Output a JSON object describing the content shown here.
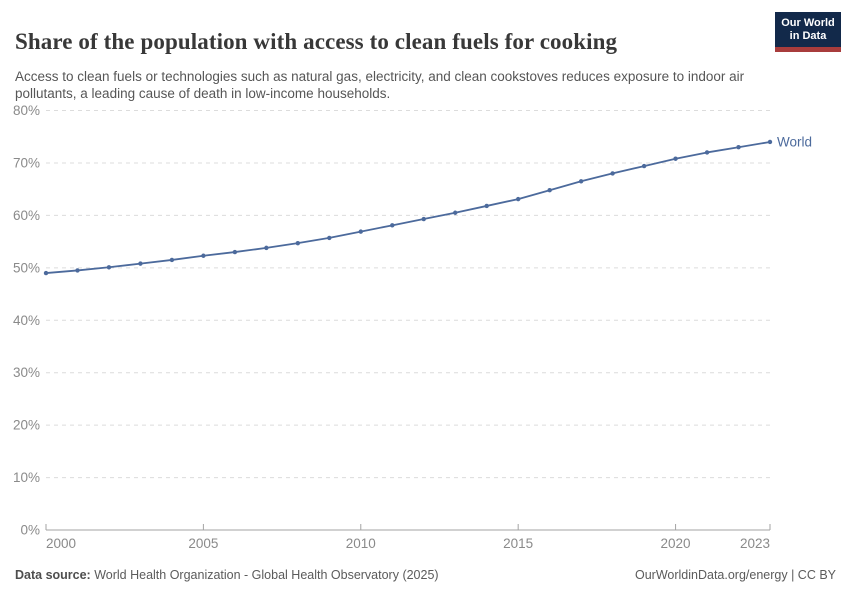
{
  "colors": {
    "line": "#4c6a9c",
    "grid": "#dcdcdc",
    "axis": "#a3a3a3",
    "tick_label": "#8a8a8a",
    "logo_bg": "#12294a",
    "logo_accent": "#a83c3c"
  },
  "header": {
    "title": "Share of the population with access to clean fuels for cooking",
    "subtitle": "Access to clean fuels or technologies such as natural gas, electricity, and clean cookstoves reduces exposure to indoor air pollutants, a leading cause of death in low-income households.",
    "logo": {
      "line1": "Our World",
      "line2": "in Data"
    }
  },
  "chart_data": {
    "type": "line",
    "title": "Share of the population with access to clean fuels for cooking",
    "x": [
      2000,
      2001,
      2002,
      2003,
      2004,
      2005,
      2006,
      2007,
      2008,
      2009,
      2010,
      2011,
      2012,
      2013,
      2014,
      2015,
      2016,
      2017,
      2018,
      2019,
      2020,
      2021,
      2022,
      2023
    ],
    "series": [
      {
        "name": "World",
        "color": "#4c6a9c",
        "values": [
          49.0,
          49.5,
          50.1,
          50.8,
          51.5,
          52.3,
          53.0,
          53.8,
          54.7,
          55.7,
          56.9,
          58.1,
          59.3,
          60.5,
          61.8,
          63.1,
          64.8,
          66.5,
          68.0,
          69.4,
          70.8,
          72.0,
          73.0,
          74.0
        ]
      }
    ],
    "xlabel": "",
    "ylabel": "",
    "xlim": [
      2000,
      2023
    ],
    "ylim": [
      0,
      80
    ],
    "xticks": [
      2000,
      2005,
      2010,
      2015,
      2020,
      2023
    ],
    "yticks": [
      0,
      10,
      20,
      30,
      40,
      50,
      60,
      70,
      80
    ],
    "ytick_suffix": "%",
    "grid": "horizontal-dashed",
    "legend": "line-end-label"
  },
  "footer": {
    "datasource_label": "Data source:",
    "datasource_text": " World Health Organization - Global Health Observatory (2025)",
    "credit": "OurWorldinData.org/energy | CC BY"
  }
}
